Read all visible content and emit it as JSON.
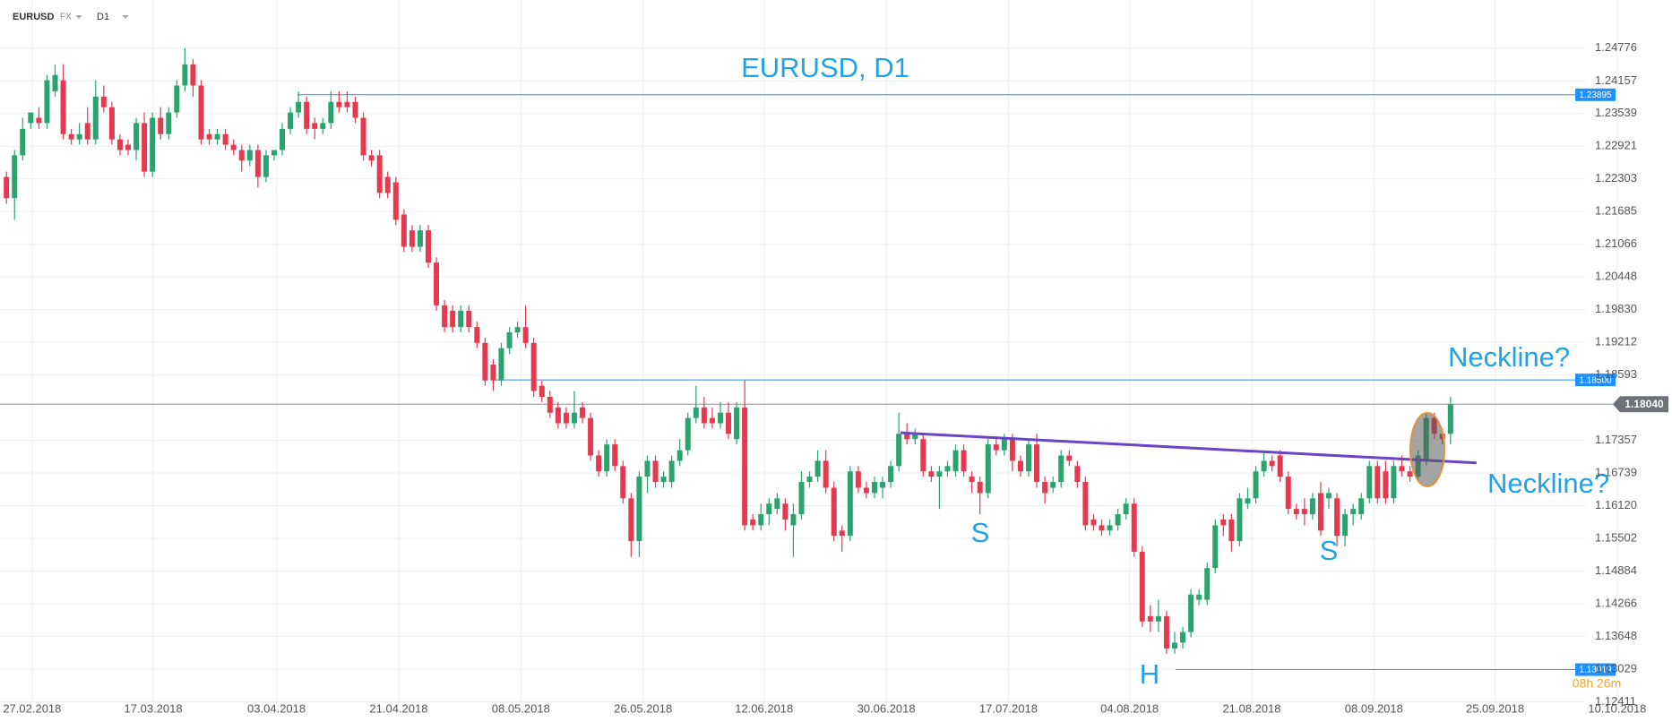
{
  "toolbar": {
    "symbol": "EURUSD",
    "market": "FX",
    "interval": "D1"
  },
  "chart_data": {
    "type": "candlestick",
    "title": "EURUSD, D1",
    "annotations": [
      "Neckline?",
      "Neckline?",
      "S",
      "S",
      "H"
    ],
    "countdown": "08h 26m",
    "up_color": "#28a46c",
    "down_color": "#e5394f",
    "xlim": [
      -0.793,
      205.3
    ],
    "ylim": [
      1.12384,
      1.25688
    ],
    "grid": true,
    "xticks": [
      {
        "value": 3.17,
        "label": "27.02.2018"
      },
      {
        "value": 18.1,
        "label": "17.03.2018"
      },
      {
        "value": 33.29,
        "label": "03.04.2018"
      },
      {
        "value": 48.35,
        "label": "21.04.2018"
      },
      {
        "value": 63.41,
        "label": "08.05.2018"
      },
      {
        "value": 78.47,
        "label": "26.05.2018"
      },
      {
        "value": 93.39,
        "label": "12.06.2018"
      },
      {
        "value": 108.45,
        "label": "30.06.2018"
      },
      {
        "value": 123.51,
        "label": "17.07.2018"
      },
      {
        "value": 138.44,
        "label": "04.08.2018"
      },
      {
        "value": 153.5,
        "label": "21.08.2018"
      },
      {
        "value": 168.56,
        "label": "08.09.2018"
      },
      {
        "value": 183.49,
        "label": "25.09.2018"
      },
      {
        "value": 198.55,
        "label": "10.10.2018"
      }
    ],
    "yticks": [
      1.24776,
      1.24157,
      1.23539,
      1.22921,
      1.22303,
      1.21685,
      1.21066,
      1.20448,
      {
        "value": 1.1983,
        "label": "1.19830"
      },
      1.19212,
      1.18593,
      1.17357,
      1.16739,
      {
        "value": 1.1612,
        "label": "1.16120"
      },
      1.15502,
      1.14884,
      1.14266,
      1.13648,
      1.13029,
      1.12411
    ],
    "levels": [
      {
        "value": 1.23895,
        "from": 35.9
      },
      {
        "value": 1.185,
        "label": "1.18500",
        "from": 60
      },
      {
        "value": 1.13019,
        "from": 144.1
      }
    ],
    "current_price": {
      "value": 1.1804,
      "label": "1.18040"
    },
    "trendline": {
      "x": [
        110.2,
        181.2
      ],
      "y": [
        1.175,
        1.1693
      ],
      "color": "#6b44c9"
    },
    "candles": [
      [
        1.2234,
        1.2244,
        1.2183,
        1.2194
      ],
      [
        1.2194,
        1.2285,
        1.2153,
        1.2275
      ],
      [
        1.2275,
        1.2346,
        1.2265,
        1.2325
      ],
      [
        1.2336,
        1.2356,
        1.2325,
        1.2356
      ],
      [
        1.2346,
        1.2366,
        1.2325,
        1.2336
      ],
      [
        1.2336,
        1.2427,
        1.2325,
        1.2417
      ],
      [
        1.2396,
        1.2447,
        1.2386,
        1.2427
      ],
      [
        1.2417,
        1.2447,
        1.2305,
        1.2315
      ],
      [
        1.2315,
        1.2325,
        1.2295,
        1.2305
      ],
      [
        1.2305,
        1.2336,
        1.2295,
        1.2315
      ],
      [
        1.2336,
        1.2366,
        1.2295,
        1.2305
      ],
      [
        1.2305,
        1.2417,
        1.2295,
        1.2386
      ],
      [
        1.2386,
        1.2407,
        1.2356,
        1.2366
      ],
      [
        1.2366,
        1.2376,
        1.2295,
        1.2305
      ],
      [
        1.2305,
        1.2315,
        1.2275,
        1.2285
      ],
      [
        1.2295,
        1.2305,
        1.2275,
        1.2285
      ],
      [
        1.2285,
        1.2346,
        1.2265,
        1.2336
      ],
      [
        1.2336,
        1.2356,
        1.2234,
        1.2244
      ],
      [
        1.2244,
        1.2356,
        1.2234,
        1.2346
      ],
      [
        1.2346,
        1.2366,
        1.2305,
        1.2315
      ],
      [
        1.2315,
        1.2366,
        1.2305,
        1.2356
      ],
      [
        1.2356,
        1.2417,
        1.2346,
        1.2407
      ],
      [
        1.2407,
        1.2478,
        1.2396,
        1.2447
      ],
      [
        1.2447,
        1.2457,
        1.2386,
        1.2407
      ],
      [
        1.2407,
        1.2417,
        1.2295,
        1.2305
      ],
      [
        1.2315,
        1.2325,
        1.2295,
        1.2305
      ],
      [
        1.2305,
        1.2325,
        1.2295,
        1.2315
      ],
      [
        1.2315,
        1.2325,
        1.2285,
        1.2295
      ],
      [
        1.2295,
        1.2305,
        1.2275,
        1.2285
      ],
      [
        1.2285,
        1.2295,
        1.2244,
        1.2265
      ],
      [
        1.2265,
        1.2295,
        1.2254,
        1.2285
      ],
      [
        1.2285,
        1.2295,
        1.2214,
        1.2234
      ],
      [
        1.2234,
        1.2285,
        1.2224,
        1.2275
      ],
      [
        1.2275,
        1.2285,
        1.2265,
        1.2285
      ],
      [
        1.2285,
        1.2336,
        1.2275,
        1.2325
      ],
      [
        1.2325,
        1.2366,
        1.2315,
        1.2356
      ],
      [
        1.2356,
        1.2396,
        1.2346,
        1.2376
      ],
      [
        1.2376,
        1.2386,
        1.2315,
        1.2325
      ],
      [
        1.2336,
        1.2346,
        1.2305,
        1.2325
      ],
      [
        1.2325,
        1.2346,
        1.2315,
        1.2336
      ],
      [
        1.2336,
        1.2396,
        1.2325,
        1.2376
      ],
      [
        1.2376,
        1.2396,
        1.2356,
        1.2366
      ],
      [
        1.2376,
        1.2396,
        1.2356,
        1.2366
      ],
      [
        1.2376,
        1.2386,
        1.2336,
        1.2346
      ],
      [
        1.2346,
        1.2356,
        1.2265,
        1.2275
      ],
      [
        1.2275,
        1.2285,
        1.2254,
        1.2265
      ],
      [
        1.2275,
        1.2285,
        1.2194,
        1.2204
      ],
      [
        1.2234,
        1.2244,
        1.2194,
        1.2204
      ],
      [
        1.2224,
        1.2234,
        1.2143,
        1.2153
      ],
      [
        1.2163,
        1.2173,
        1.2092,
        1.2102
      ],
      [
        1.2133,
        1.2143,
        1.2092,
        1.2102
      ],
      [
        1.2102,
        1.2143,
        1.2092,
        1.2133
      ],
      [
        1.2133,
        1.2143,
        1.2062,
        1.2072
      ],
      [
        1.2072,
        1.2082,
        1.1981,
        1.1991
      ],
      [
        1.1991,
        1.2001,
        1.194,
        1.195
      ],
      [
        1.1981,
        1.1991,
        1.194,
        1.195
      ],
      [
        1.195,
        1.1991,
        1.194,
        1.1981
      ],
      [
        1.1981,
        1.1991,
        1.194,
        1.195
      ],
      [
        1.195,
        1.196,
        1.191,
        1.192
      ],
      [
        1.192,
        1.193,
        1.1839,
        1.1849
      ],
      [
        1.1879,
        1.1889,
        1.1829,
        1.1849
      ],
      [
        1.1849,
        1.192,
        1.1839,
        1.191
      ],
      [
        1.191,
        1.195,
        1.1899,
        1.194
      ],
      [
        1.194,
        1.196,
        1.193,
        1.195
      ],
      [
        1.195,
        1.1991,
        1.191,
        1.192
      ],
      [
        1.192,
        1.193,
        1.1818,
        1.1829
      ],
      [
        1.1839,
        1.1849,
        1.1808,
        1.1818
      ],
      [
        1.1818,
        1.1829,
        1.1778,
        1.1788
      ],
      [
        1.1798,
        1.1808,
        1.1758,
        1.1768
      ],
      [
        1.1788,
        1.1798,
        1.1758,
        1.1768
      ],
      [
        1.1768,
        1.1829,
        1.1758,
        1.1788
      ],
      [
        1.1798,
        1.1808,
        1.1768,
        1.1778
      ],
      [
        1.1778,
        1.1788,
        1.1697,
        1.1707
      ],
      [
        1.1707,
        1.1717,
        1.1667,
        1.1677
      ],
      [
        1.1677,
        1.1738,
        1.1667,
        1.1728
      ],
      [
        1.1728,
        1.1738,
        1.1677,
        1.1687
      ],
      [
        1.1687,
        1.1697,
        1.1616,
        1.1626
      ],
      [
        1.1626,
        1.1636,
        1.1515,
        1.1545
      ],
      [
        1.1545,
        1.1677,
        1.1515,
        1.1667
      ],
      [
        1.1667,
        1.1707,
        1.1636,
        1.1697
      ],
      [
        1.1697,
        1.1707,
        1.1646,
        1.1657
      ],
      [
        1.1657,
        1.1677,
        1.1646,
        1.1667
      ],
      [
        1.1657,
        1.1707,
        1.1646,
        1.1697
      ],
      [
        1.1697,
        1.1738,
        1.1687,
        1.1717
      ],
      [
        1.1717,
        1.1788,
        1.1707,
        1.1778
      ],
      [
        1.1778,
        1.1839,
        1.1768,
        1.1798
      ],
      [
        1.1798,
        1.1818,
        1.1758,
        1.1768
      ],
      [
        1.1778,
        1.1798,
        1.1758,
        1.1768
      ],
      [
        1.1768,
        1.1808,
        1.1758,
        1.1788
      ],
      [
        1.1788,
        1.1808,
        1.1738,
        1.1748
      ],
      [
        1.1738,
        1.1808,
        1.1728,
        1.1798
      ],
      [
        1.1798,
        1.1849,
        1.1565,
        1.1575
      ],
      [
        1.1586,
        1.1596,
        1.1565,
        1.1575
      ],
      [
        1.1575,
        1.1616,
        1.1565,
        1.1596
      ],
      [
        1.1596,
        1.1626,
        1.1575,
        1.1616
      ],
      [
        1.1606,
        1.1636,
        1.1596,
        1.1626
      ],
      [
        1.1616,
        1.1626,
        1.1565,
        1.1586
      ],
      [
        1.1575,
        1.1616,
        1.1515,
        1.1596
      ],
      [
        1.1596,
        1.1677,
        1.1586,
        1.1657
      ],
      [
        1.1657,
        1.1677,
        1.1646,
        1.1667
      ],
      [
        1.1667,
        1.1717,
        1.1657,
        1.1697
      ],
      [
        1.1697,
        1.1717,
        1.1636,
        1.1646
      ],
      [
        1.1646,
        1.1657,
        1.1545,
        1.1555
      ],
      [
        1.1565,
        1.1575,
        1.1525,
        1.1555
      ],
      [
        1.1555,
        1.1687,
        1.1545,
        1.1677
      ],
      [
        1.1677,
        1.1687,
        1.1636,
        1.1646
      ],
      [
        1.1646,
        1.1657,
        1.1626,
        1.1636
      ],
      [
        1.1636,
        1.1667,
        1.1626,
        1.1657
      ],
      [
        1.1646,
        1.1667,
        1.1626,
        1.1657
      ],
      [
        1.1657,
        1.1697,
        1.1646,
        1.1687
      ],
      [
        1.1687,
        1.1788,
        1.1677,
        1.1748
      ],
      [
        1.1748,
        1.1768,
        1.1728,
        1.1738
      ],
      [
        1.1738,
        1.1758,
        1.1728,
        1.1748
      ],
      [
        1.1738,
        1.1748,
        1.1667,
        1.1677
      ],
      [
        1.1677,
        1.1687,
        1.1657,
        1.1667
      ],
      [
        1.1667,
        1.1687,
        1.1606,
        1.1677
      ],
      [
        1.1677,
        1.1697,
        1.1667,
        1.1687
      ],
      [
        1.1677,
        1.1728,
        1.1667,
        1.1717
      ],
      [
        1.1717,
        1.1728,
        1.1667,
        1.1677
      ],
      [
        1.1667,
        1.1677,
        1.1636,
        1.1657
      ],
      [
        1.1657,
        1.1667,
        1.1596,
        1.1636
      ],
      [
        1.1636,
        1.1738,
        1.1626,
        1.1728
      ],
      [
        1.1728,
        1.1738,
        1.1707,
        1.1717
      ],
      [
        1.1717,
        1.1748,
        1.1707,
        1.1738
      ],
      [
        1.1738,
        1.1748,
        1.1677,
        1.1697
      ],
      [
        1.1697,
        1.1707,
        1.1667,
        1.1677
      ],
      [
        1.1677,
        1.1738,
        1.1667,
        1.1728
      ],
      [
        1.1728,
        1.1748,
        1.1646,
        1.1657
      ],
      [
        1.1657,
        1.1667,
        1.1616,
        1.1636
      ],
      [
        1.1646,
        1.1667,
        1.1636,
        1.1657
      ],
      [
        1.1657,
        1.1717,
        1.1646,
        1.1707
      ],
      [
        1.1707,
        1.1717,
        1.1687,
        1.1697
      ],
      [
        1.1687,
        1.1697,
        1.1646,
        1.1657
      ],
      [
        1.1657,
        1.1667,
        1.1565,
        1.1575
      ],
      [
        1.1586,
        1.1596,
        1.1565,
        1.1575
      ],
      [
        1.1575,
        1.1586,
        1.1555,
        1.1565
      ],
      [
        1.1565,
        1.1586,
        1.1555,
        1.1575
      ],
      [
        1.1575,
        1.1606,
        1.1565,
        1.1596
      ],
      [
        1.1596,
        1.1626,
        1.1586,
        1.1616
      ],
      [
        1.1616,
        1.1626,
        1.1515,
        1.1525
      ],
      [
        1.1525,
        1.1535,
        1.1383,
        1.1393
      ],
      [
        1.1403,
        1.1424,
        1.1373,
        1.1393
      ],
      [
        1.1393,
        1.1434,
        1.1373,
        1.1403
      ],
      [
        1.1403,
        1.1413,
        1.1332,
        1.1342
      ],
      [
        1.1342,
        1.1373,
        1.1332,
        1.1353
      ],
      [
        1.1353,
        1.1383,
        1.1342,
        1.1373
      ],
      [
        1.1373,
        1.1454,
        1.1363,
        1.1444
      ],
      [
        1.1434,
        1.1454,
        1.1424,
        1.1444
      ],
      [
        1.1434,
        1.1504,
        1.1424,
        1.1494
      ],
      [
        1.1494,
        1.1586,
        1.1484,
        1.1575
      ],
      [
        1.1586,
        1.1596,
        1.1555,
        1.1575
      ],
      [
        1.1586,
        1.1596,
        1.1525,
        1.1545
      ],
      [
        1.1545,
        1.1636,
        1.1535,
        1.1626
      ],
      [
        1.1616,
        1.1646,
        1.1606,
        1.1626
      ],
      [
        1.1626,
        1.1687,
        1.1616,
        1.1677
      ],
      [
        1.1677,
        1.1717,
        1.1667,
        1.1697
      ],
      [
        1.1697,
        1.1707,
        1.1677,
        1.1687
      ],
      [
        1.1707,
        1.1717,
        1.1657,
        1.1667
      ],
      [
        1.1667,
        1.1677,
        1.1596,
        1.1606
      ],
      [
        1.1606,
        1.1616,
        1.1586,
        1.1596
      ],
      [
        1.1606,
        1.1626,
        1.1575,
        1.1596
      ],
      [
        1.1596,
        1.1636,
        1.1586,
        1.1626
      ],
      [
        1.1636,
        1.1657,
        1.1555,
        1.1565
      ],
      [
        1.1626,
        1.1646,
        1.1606,
        1.1636
      ],
      [
        1.1626,
        1.1636,
        1.1535,
        1.1555
      ],
      [
        1.1555,
        1.1606,
        1.1535,
        1.1596
      ],
      [
        1.1596,
        1.1616,
        1.1575,
        1.1606
      ],
      [
        1.1596,
        1.1636,
        1.1586,
        1.1626
      ],
      [
        1.1626,
        1.1697,
        1.1616,
        1.1687
      ],
      [
        1.1687,
        1.1697,
        1.1616,
        1.1626
      ],
      [
        1.1677,
        1.1697,
        1.1616,
        1.1626
      ],
      [
        1.1626,
        1.1697,
        1.1616,
        1.1687
      ],
      [
        1.1687,
        1.1707,
        1.1667,
        1.1677
      ],
      [
        1.1677,
        1.1687,
        1.1657,
        1.1667
      ],
      [
        1.1667,
        1.1717,
        1.1657,
        1.1707
      ],
      [
        1.1697,
        1.1788,
        1.1687,
        1.1778
      ],
      [
        1.1778,
        1.1788,
        1.1738,
        1.1748
      ],
      [
        1.1748,
        1.1758,
        1.1728,
        1.1738
      ],
      [
        1.1748,
        1.1818,
        1.1728,
        1.1804
      ]
    ]
  }
}
